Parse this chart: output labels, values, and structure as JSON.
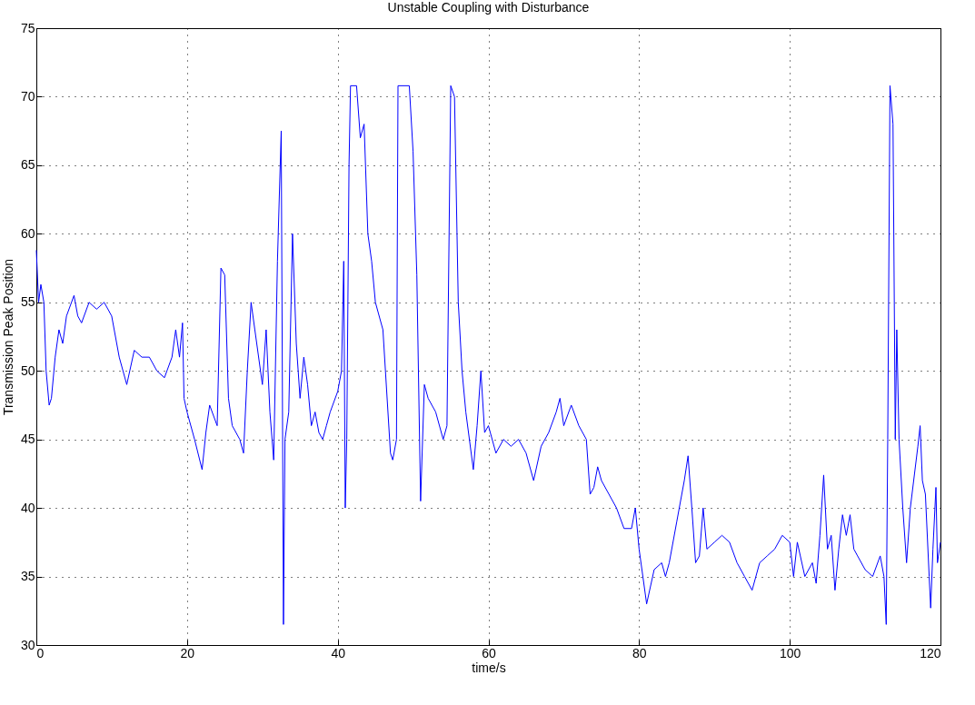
{
  "chart_data": {
    "type": "line",
    "title": "Unstable Coupling with Disturbance",
    "xlabel": "time/s",
    "ylabel": "Transmission Peak Position",
    "xlim": [
      0,
      120
    ],
    "ylim": [
      30,
      75
    ],
    "xticks": [
      0,
      20,
      40,
      60,
      80,
      100,
      120
    ],
    "yticks": [
      30,
      35,
      40,
      45,
      50,
      55,
      60,
      65,
      70,
      75
    ],
    "grid": true,
    "line_style": "solid",
    "marker": "none",
    "series": [
      {
        "color": "#0000ff",
        "x": [
          0,
          0.3,
          0.6,
          1,
          1.3,
          1.7,
          2,
          2.5,
          3,
          3.5,
          4,
          5,
          5.5,
          6,
          7,
          8,
          9,
          10,
          11,
          12,
          13,
          14,
          15,
          16,
          17,
          18,
          18.5,
          19,
          19.4,
          19.6,
          20,
          21,
          22,
          22.5,
          23,
          24,
          24.5,
          25,
          25.5,
          26,
          27,
          27.5,
          28,
          28.5,
          29,
          30,
          30.5,
          31,
          31.5,
          32,
          32.5,
          32.8,
          33,
          33.5,
          34,
          34.5,
          35,
          35.5,
          36,
          36.5,
          37,
          37.5,
          38,
          38.5,
          39,
          40,
          40.5,
          40.8,
          41,
          41.2,
          41.5,
          41.7,
          42.5,
          43,
          43.5,
          44,
          44.5,
          45,
          46,
          47,
          47.3,
          47.8,
          48,
          49.5,
          50,
          50.5,
          51,
          51.5,
          52,
          53,
          54,
          54.5,
          55,
          55.5,
          56,
          56.5,
          57,
          58,
          58.5,
          59,
          59.5,
          60,
          61,
          62,
          63,
          64,
          65,
          66,
          67,
          68,
          69,
          69.5,
          70,
          71,
          72,
          73,
          73.5,
          74,
          74.5,
          75,
          76,
          77,
          78,
          79,
          79.5,
          80,
          81,
          82,
          83,
          83.5,
          84,
          85,
          86,
          86.5,
          87,
          87.5,
          88,
          88.5,
          89,
          90,
          91,
          92,
          93,
          94,
          95,
          96,
          97,
          98,
          99,
          100,
          100.5,
          101,
          102,
          103,
          103.5,
          104,
          104.5,
          105,
          105.5,
          106,
          106.5,
          107,
          107.5,
          108,
          108.5,
          109,
          110,
          111,
          112,
          112.5,
          112.8,
          113,
          113.3,
          113.7,
          114,
          114.2,
          114.5,
          115,
          115.5,
          116,
          117,
          117.3,
          117.6,
          118,
          118.5,
          118.7,
          119,
          119.4,
          119.6,
          120
        ],
        "values": [
          58.8,
          55,
          56.3,
          55,
          50,
          47.5,
          48,
          51,
          53,
          52,
          54,
          55.5,
          54,
          53.5,
          55,
          54.5,
          55,
          54,
          51,
          49,
          51.5,
          51,
          51,
          50,
          49.5,
          51,
          53,
          51,
          53.5,
          48,
          47,
          45,
          42.8,
          45.5,
          47.5,
          46,
          57.5,
          57,
          48,
          46,
          45,
          44,
          50,
          55,
          53,
          49,
          53,
          47,
          43.5,
          58,
          67.5,
          31.5,
          45,
          47,
          60,
          52,
          48,
          51,
          49,
          46,
          47,
          45.5,
          45,
          46,
          47,
          48.5,
          50,
          58,
          40,
          45,
          65,
          70.8,
          70.8,
          67,
          68,
          60,
          58,
          55,
          53,
          44,
          43.5,
          45,
          70.8,
          70.8,
          66,
          57,
          40.5,
          49,
          48,
          47,
          45,
          46,
          70.8,
          70,
          55,
          50,
          47,
          42.8,
          46,
          50,
          45.5,
          46,
          44,
          45,
          44.5,
          45,
          44,
          42,
          44.5,
          45.5,
          47,
          48,
          46,
          47.5,
          46,
          45,
          41,
          41.5,
          43,
          42,
          41,
          40,
          38.5,
          38.5,
          40,
          37,
          33,
          35.5,
          36,
          35,
          36,
          39,
          42,
          43.8,
          40,
          36,
          36.5,
          40,
          37,
          37.5,
          38,
          37.5,
          36,
          35,
          34,
          36,
          36.5,
          37,
          38,
          37.5,
          35,
          37.5,
          35,
          36,
          34.5,
          38,
          42.4,
          37,
          38,
          34,
          37,
          39.5,
          38,
          39.5,
          37,
          36.5,
          35.5,
          35,
          36.5,
          35,
          31.5,
          45,
          70.8,
          68,
          45,
          53,
          45,
          40,
          36,
          40,
          44.5,
          46,
          42,
          41,
          35,
          32.7,
          37,
          41.5,
          36,
          37.5
        ]
      }
    ]
  }
}
